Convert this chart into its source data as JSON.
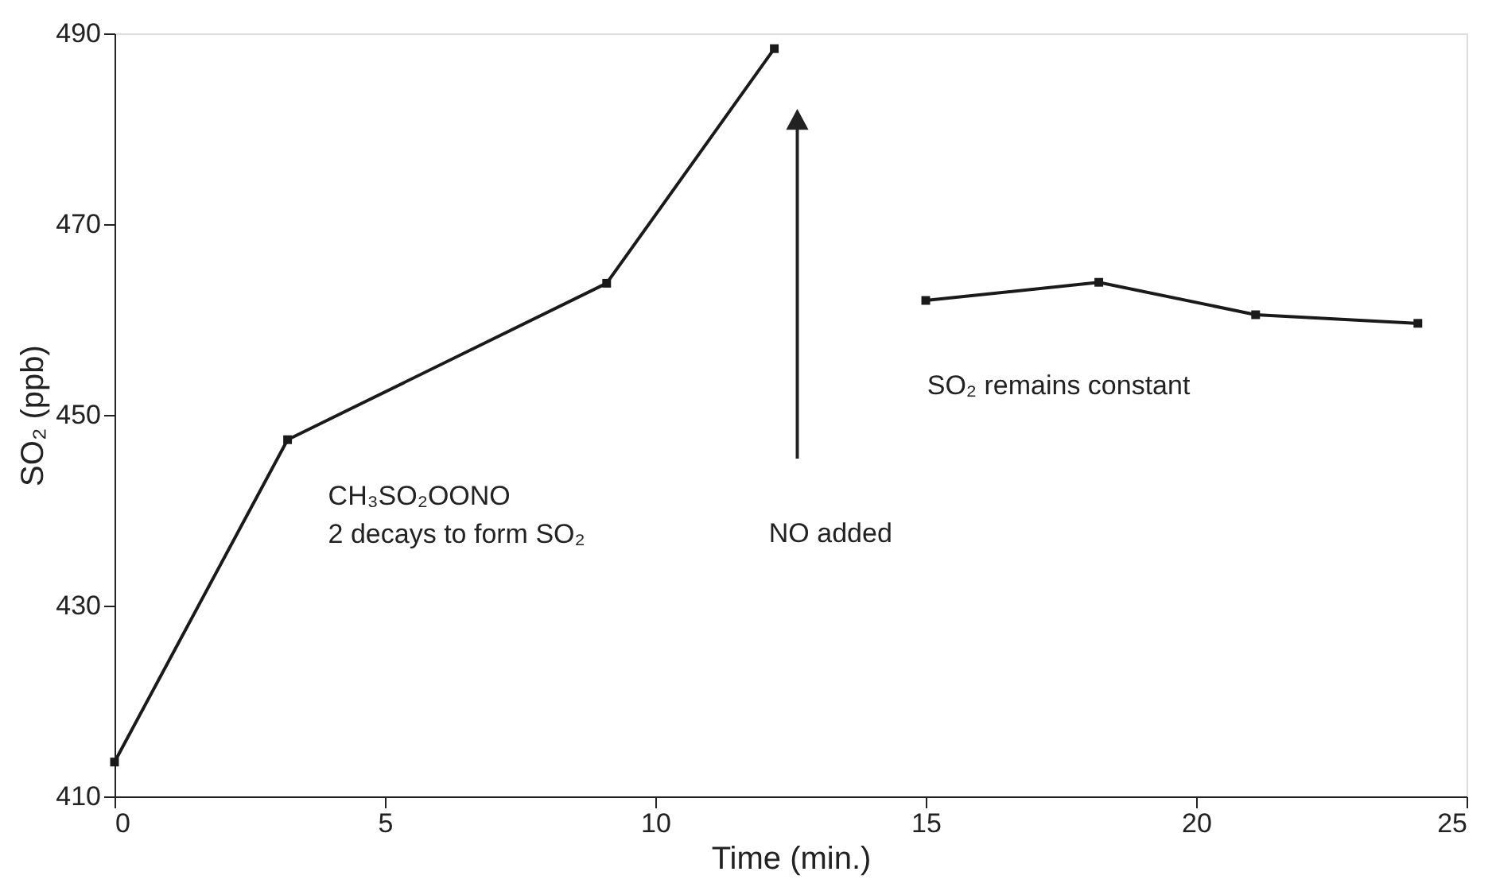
{
  "chart_data": {
    "type": "line",
    "xlabel": "Time (min.)",
    "ylabel": "SO₂ (ppb)",
    "series": [
      {
        "color": "#1a1a1a",
        "x": [
          0,
          3.2,
          9.1,
          12.2
        ],
        "values": [
          413.6,
          447.4,
          463.8,
          488.4
        ]
      },
      {
        "color": "#1a1a1a",
        "x": [
          15.0,
          18.2,
          21.1,
          24.1
        ],
        "values": [
          462.0,
          463.9,
          460.5,
          459.6
        ]
      }
    ],
    "xlim": [
      0,
      25
    ],
    "xticks": [
      0,
      5,
      10,
      15,
      20,
      25
    ],
    "ylim": [
      410,
      490
    ],
    "yticks": [
      410,
      430,
      450,
      470,
      490
    ],
    "grid": false,
    "marker": "square",
    "line_style": "solid",
    "annotations": [
      "CH₃SO₂OONO\n2 decays to form SO₂",
      "NO added",
      "SO₂ remains constant"
    ]
  }
}
